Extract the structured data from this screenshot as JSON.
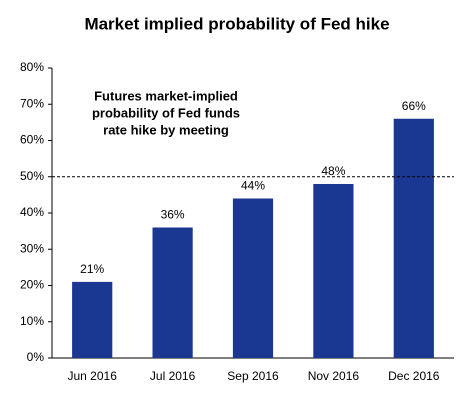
{
  "chart_data": {
    "type": "bar",
    "title": "Market implied probability of Fed hike",
    "annotation": [
      "Futures market-implied",
      "probability of Fed funds",
      "rate hike by meeting"
    ],
    "categories": [
      "Jun 2016",
      "Jul 2016",
      "Sep 2016",
      "Nov 2016",
      "Dec 2016"
    ],
    "values": [
      21,
      36,
      44,
      48,
      66
    ],
    "value_labels": [
      "21%",
      "36%",
      "44%",
      "48%",
      "66%"
    ],
    "color": "#1a3791",
    "reference_line": 50,
    "ylim": [
      0,
      80
    ],
    "yticks": [
      {
        "value": 0,
        "label": "0%"
      },
      {
        "value": 10,
        "label": "10%"
      },
      {
        "value": 20,
        "label": "20%"
      },
      {
        "value": 30,
        "label": "30%"
      },
      {
        "value": 40,
        "label": "40%"
      },
      {
        "value": 50,
        "label": "50%"
      },
      {
        "value": 60,
        "label": "60%"
      },
      {
        "value": 70,
        "label": "70%"
      },
      {
        "value": 80,
        "label": "80%"
      }
    ]
  }
}
